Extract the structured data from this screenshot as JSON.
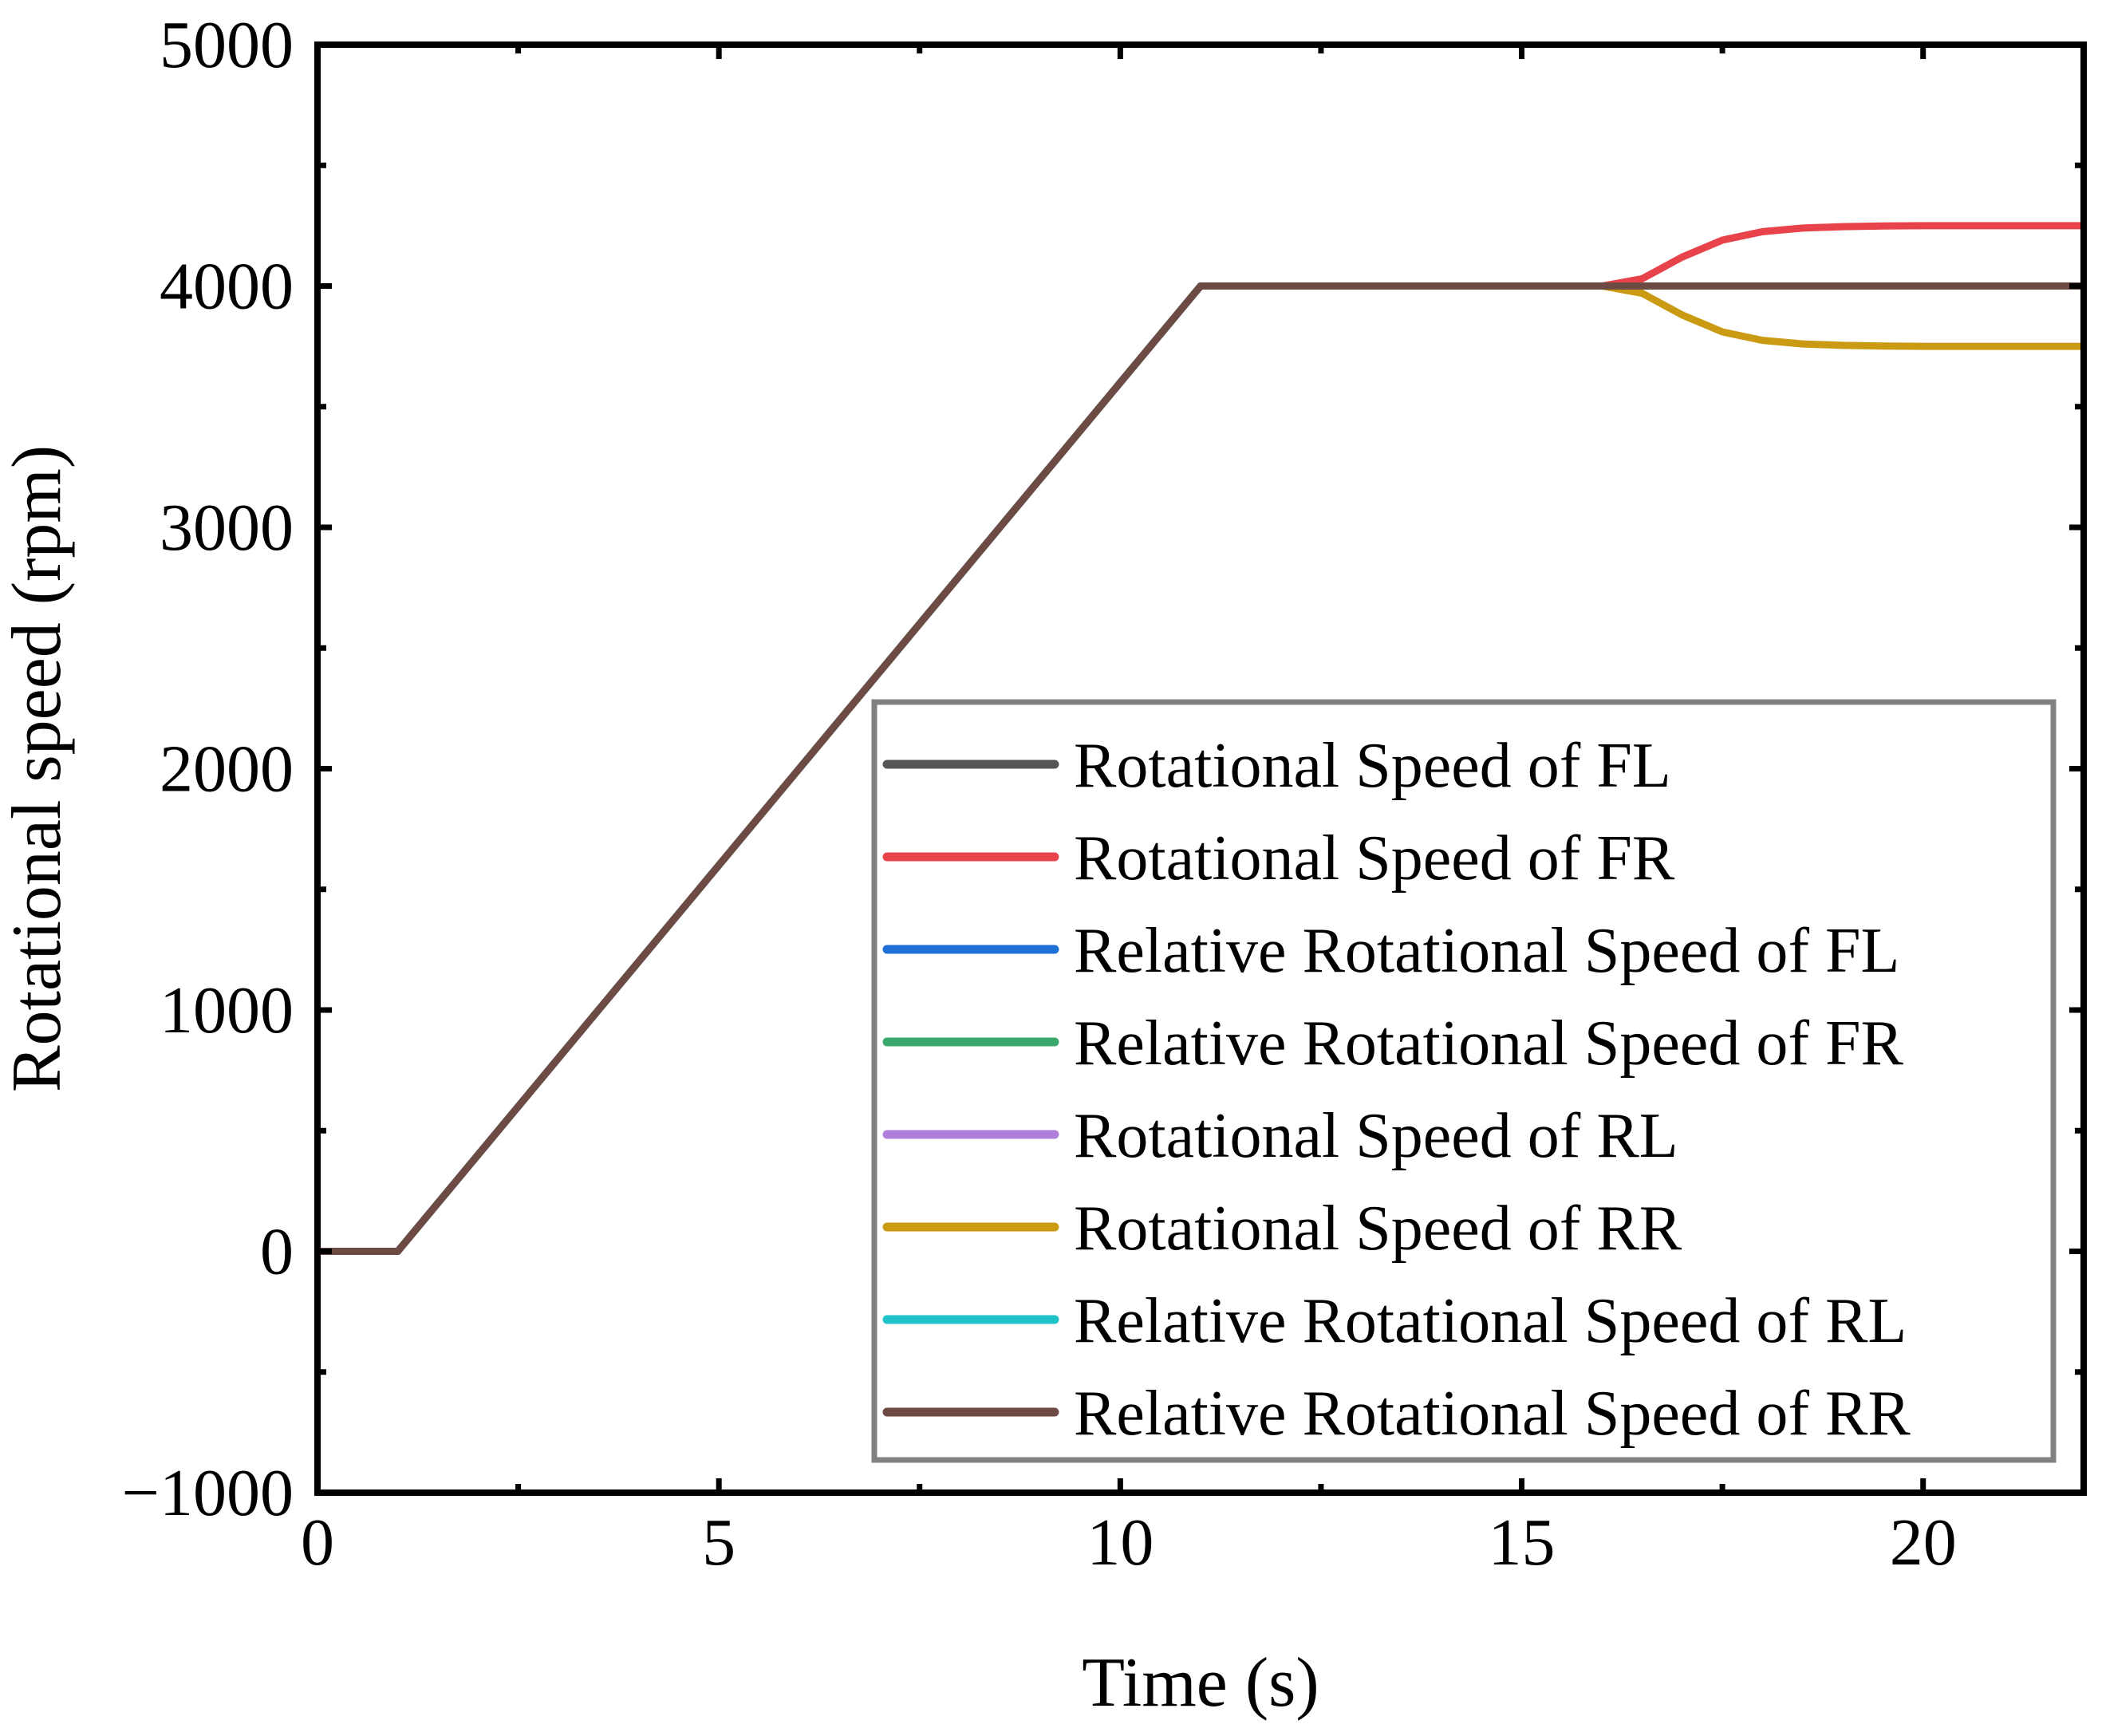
{
  "chart_data": {
    "type": "line",
    "title": "",
    "xlabel": "Time (s)",
    "ylabel": "Rotational speed (rpm)",
    "xlim": [
      0,
      22
    ],
    "ylim": [
      -1000,
      5000
    ],
    "xticks": [
      0,
      5,
      10,
      15,
      20
    ],
    "xtick_labels": [
      "0",
      "5",
      "10",
      "15",
      "20"
    ],
    "yticks": [
      -1000,
      0,
      1000,
      2000,
      3000,
      4000,
      5000
    ],
    "ytick_labels": [
      "−1000",
      "0",
      "1000",
      "2000",
      "3000",
      "4000",
      "5000"
    ],
    "legend_position": "lower-right",
    "series": [
      {
        "name": "Rotational Speed of FL",
        "color": "#555555",
        "x": [
          0,
          1,
          11,
          22
        ],
        "y": [
          0,
          0,
          4000,
          4000
        ]
      },
      {
        "name": "Rotational Speed of FR",
        "color": "#e8434a",
        "x": [
          0,
          1,
          11,
          16,
          16.5,
          17,
          17.5,
          18,
          18.5,
          19,
          19.5,
          20,
          21,
          22
        ],
        "y": [
          0,
          0,
          4000,
          4000,
          4030,
          4120,
          4190,
          4225,
          4240,
          4246,
          4249,
          4250,
          4250,
          4250
        ]
      },
      {
        "name": "Relative Rotational Speed of FL",
        "color": "#1f6fd6",
        "x": [
          0,
          1,
          11,
          22
        ],
        "y": [
          0,
          0,
          4000,
          4000
        ]
      },
      {
        "name": "Relative Rotational Speed of FR",
        "color": "#3aa86a",
        "x": [
          0,
          1,
          11,
          22
        ],
        "y": [
          0,
          0,
          4000,
          4000
        ]
      },
      {
        "name": "Rotational Speed of RL",
        "color": "#b07fdc",
        "x": [
          0,
          1,
          11,
          22
        ],
        "y": [
          0,
          0,
          4000,
          4000
        ]
      },
      {
        "name": "Rotational Speed of RR",
        "color": "#c99a12",
        "x": [
          0,
          1,
          11,
          16,
          16.5,
          17,
          17.5,
          18,
          18.5,
          19,
          19.5,
          20,
          21,
          22
        ],
        "y": [
          0,
          0,
          4000,
          4000,
          3970,
          3880,
          3810,
          3775,
          3760,
          3754,
          3751,
          3750,
          3750,
          3750
        ]
      },
      {
        "name": "Relative Rotational Speed of RL",
        "color": "#1fc3c8",
        "x": [
          0,
          1,
          11,
          22
        ],
        "y": [
          0,
          0,
          4000,
          4000
        ]
      },
      {
        "name": "Relative Rotational Speed of RR",
        "color": "#6e4a45",
        "x": [
          0,
          1,
          11,
          22
        ],
        "y": [
          0,
          0,
          4000,
          4000
        ]
      }
    ]
  }
}
